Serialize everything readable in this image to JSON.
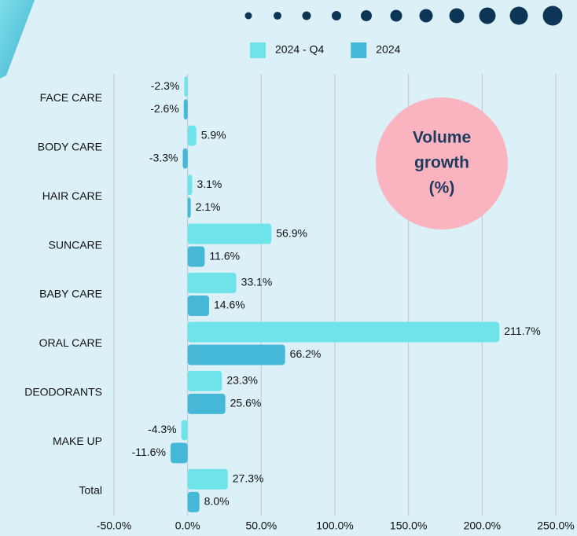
{
  "chart_data": {
    "type": "bar",
    "orientation": "horizontal",
    "annotation": [
      "Volume",
      "growth",
      "(%)"
    ],
    "categories": [
      "FACE CARE",
      "BODY CARE",
      "HAIR CARE",
      "SUNCARE",
      "BABY CARE",
      "ORAL CARE",
      "DEODORANTS",
      "MAKE UP",
      "Total"
    ],
    "series": [
      {
        "name": "2024 - Q4",
        "color": "#6ee4ea",
        "values": [
          -2.3,
          5.9,
          3.1,
          56.9,
          33.1,
          211.7,
          23.3,
          -4.3,
          27.3
        ],
        "value_labels": [
          "-2.3%",
          "5.9%",
          "3.1%",
          "56.9%",
          "33.1%",
          "211.7%",
          "23.3%",
          "-4.3%",
          "27.3%"
        ]
      },
      {
        "name": "2024",
        "color": "#45b8d8",
        "values": [
          -2.6,
          -3.3,
          2.1,
          11.6,
          14.6,
          66.2,
          25.6,
          -11.6,
          8.0
        ],
        "value_labels": [
          "-2.6%",
          "-3.3%",
          "2.1%",
          "11.6%",
          "14.6%",
          "66.2%",
          "25.6%",
          "-11.6%",
          "8.0%"
        ]
      }
    ],
    "xlim": [
      -50,
      250
    ],
    "xticks": [
      {
        "value": -50,
        "label": "-50.0%"
      },
      {
        "value": 0,
        "label": "0.0%"
      },
      {
        "value": 50,
        "label": "50.0%"
      },
      {
        "value": 100,
        "label": "100.0%"
      },
      {
        "value": 150,
        "label": "150.0%"
      },
      {
        "value": 200,
        "label": "200.0%"
      },
      {
        "value": 250,
        "label": "250.0%"
      }
    ],
    "grid": true,
    "legend": "top"
  }
}
